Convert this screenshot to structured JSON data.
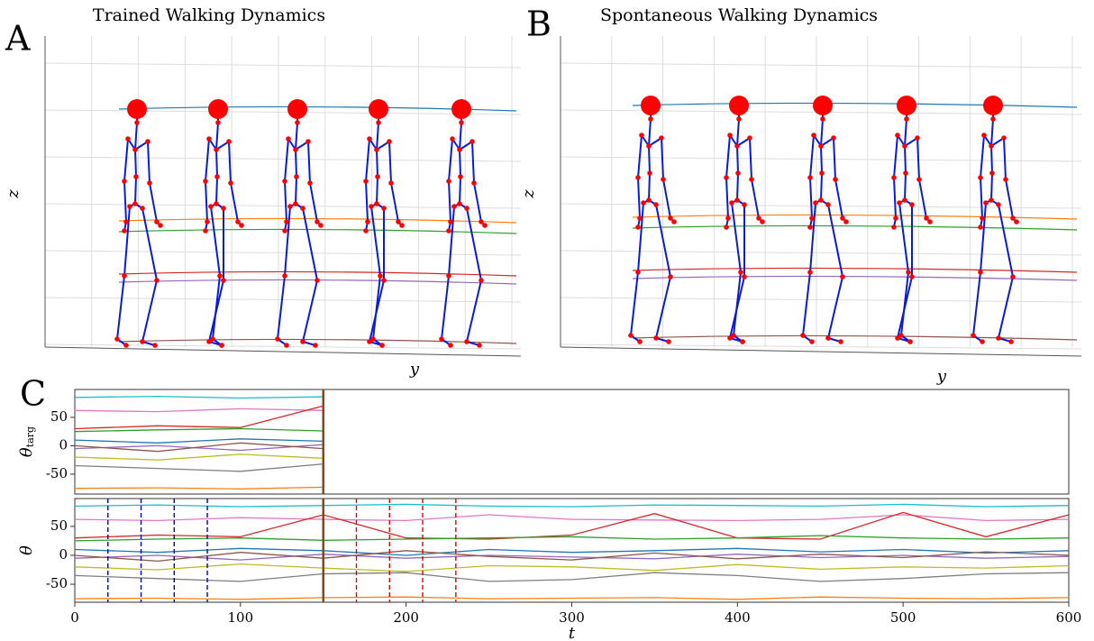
{
  "panel_a": {
    "label": "A",
    "title": "Trained Walking Dynamics",
    "z_label": "z",
    "y_label": "y"
  },
  "panel_b": {
    "label": "B",
    "title": "Spontaneous Walking Dynamics",
    "z_label": "z",
    "y_label": "y"
  },
  "panel_c": {
    "label": "C",
    "chart_data": [
      {
        "type": "line",
        "ylabel": "θ",
        "ylabel_sub": "targ",
        "xlim": [
          0,
          600
        ],
        "ylim": [
          -85,
          99
        ],
        "yticks": [
          -50,
          0,
          50
        ],
        "x": [
          0,
          50,
          100,
          150
        ],
        "series": [
          {
            "color": "#17becf",
            "values": [
              85,
              87,
              84,
              86
            ]
          },
          {
            "color": "#e377c2",
            "values": [
              62,
              60,
              65,
              62
            ]
          },
          {
            "color": "#d62728",
            "values": [
              30,
              35,
              32,
              70
            ]
          },
          {
            "color": "#2ca02c",
            "values": [
              25,
              28,
              30,
              26
            ]
          },
          {
            "color": "#1f77b4",
            "values": [
              10,
              5,
              12,
              8
            ]
          },
          {
            "color": "#9467bd",
            "values": [
              -5,
              0,
              -8,
              2
            ]
          },
          {
            "color": "#8c564b",
            "values": [
              0,
              -10,
              5,
              -5
            ]
          },
          {
            "color": "#7f7f7f",
            "values": [
              -35,
              -40,
              -45,
              -32
            ]
          },
          {
            "color": "#bcbd22",
            "values": [
              -20,
              -25,
              -15,
              -22
            ]
          },
          {
            "color": "#ff7f0e",
            "values": [
              -75,
              -74,
              -76,
              -73
            ]
          }
        ],
        "vlines": [
          {
            "x": 150,
            "color": "#8b4513",
            "dashed": false
          }
        ]
      },
      {
        "type": "line",
        "ylabel": "θ",
        "xlabel": "t",
        "xlim": [
          0,
          600
        ],
        "ylim": [
          -81,
          98
        ],
        "yticks": [
          -50,
          0,
          50
        ],
        "xticks": [
          0,
          100,
          200,
          300,
          400,
          500,
          600
        ],
        "x": [
          0,
          50,
          100,
          150,
          200,
          250,
          300,
          350,
          400,
          450,
          500,
          550,
          600
        ],
        "series": [
          {
            "color": "#17becf",
            "values": [
              85,
              87,
              84,
              86,
              88,
              85,
              84,
              87,
              86,
              85,
              88,
              84,
              86
            ]
          },
          {
            "color": "#e377c2",
            "values": [
              62,
              60,
              65,
              62,
              60,
              70,
              62,
              61,
              60,
              62,
              70,
              60,
              62
            ]
          },
          {
            "color": "#d62728",
            "values": [
              30,
              35,
              32,
              70,
              30,
              28,
              35,
              72,
              30,
              28,
              74,
              32,
              70
            ]
          },
          {
            "color": "#2ca02c",
            "values": [
              25,
              28,
              30,
              26,
              28,
              30,
              32,
              28,
              30,
              34,
              30,
              28,
              30
            ]
          },
          {
            "color": "#1f77b4",
            "values": [
              10,
              5,
              12,
              8,
              0,
              10,
              5,
              8,
              12,
              6,
              10,
              4,
              8
            ]
          },
          {
            "color": "#9467bd",
            "values": [
              -5,
              0,
              -8,
              2,
              -5,
              0,
              -3,
              -6,
              2,
              -4,
              0,
              -5,
              -2
            ]
          },
          {
            "color": "#8c564b",
            "values": [
              0,
              -10,
              5,
              -5,
              8,
              -2,
              -8,
              4,
              -6,
              2,
              -4,
              6,
              0
            ]
          },
          {
            "color": "#7f7f7f",
            "values": [
              -35,
              -40,
              -45,
              -32,
              -30,
              -45,
              -42,
              -30,
              -35,
              -45,
              -40,
              -32,
              -30
            ]
          },
          {
            "color": "#bcbd22",
            "values": [
              -20,
              -25,
              -15,
              -22,
              -28,
              -18,
              -20,
              -26,
              -16,
              -24,
              -20,
              -22,
              -18
            ]
          },
          {
            "color": "#ff7f0e",
            "values": [
              -75,
              -74,
              -76,
              -73,
              -72,
              -75,
              -74,
              -73,
              -76,
              -72,
              -74,
              -75,
              -73
            ]
          }
        ],
        "vlines": [
          {
            "x": 20,
            "color": "#0000cc",
            "dashed": true
          },
          {
            "x": 40,
            "color": "#0000cc",
            "dashed": true
          },
          {
            "x": 60,
            "color": "#0000cc",
            "dashed": true
          },
          {
            "x": 80,
            "color": "#0000cc",
            "dashed": true
          },
          {
            "x": 150,
            "color": "#8b4513",
            "dashed": false
          },
          {
            "x": 170,
            "color": "#e00000",
            "dashed": true
          },
          {
            "x": 190,
            "color": "#e00000",
            "dashed": true
          },
          {
            "x": 210,
            "color": "#e00000",
            "dashed": true
          },
          {
            "x": 230,
            "color": "#e00000",
            "dashed": true
          }
        ]
      }
    ]
  }
}
